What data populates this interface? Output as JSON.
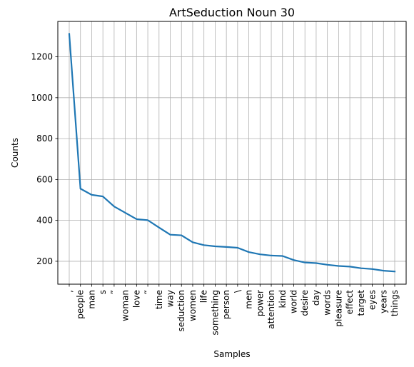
{
  "chart_data": {
    "type": "line",
    "title": "ArtSeduction Noun 30",
    "xlabel": "Samples",
    "ylabel": "Counts",
    "categories": [
      ",",
      "people",
      "man",
      "s",
      "”",
      "woman",
      "love",
      "“",
      "time",
      "way",
      "seduction",
      "women",
      "life",
      "something",
      "person",
      "\\",
      "men",
      "power",
      "attention",
      "kind",
      "world",
      "desire",
      "day",
      "words",
      "pleasure",
      "effect",
      "target",
      "eyes",
      "years",
      "things"
    ],
    "series": [
      {
        "values": [
          1312,
          555,
          525,
          517,
          468,
          437,
          406,
          401,
          365,
          330,
          327,
          293,
          279,
          273,
          270,
          266,
          245,
          234,
          228,
          226,
          206,
          194,
          191,
          183,
          177,
          174,
          166,
          162,
          154,
          150
        ]
      }
    ],
    "ylim": [
      88,
      1373
    ],
    "yticks": [
      200,
      400,
      600,
      800,
      1000,
      1200
    ],
    "grid": true,
    "line_color": "#1f77b4"
  }
}
